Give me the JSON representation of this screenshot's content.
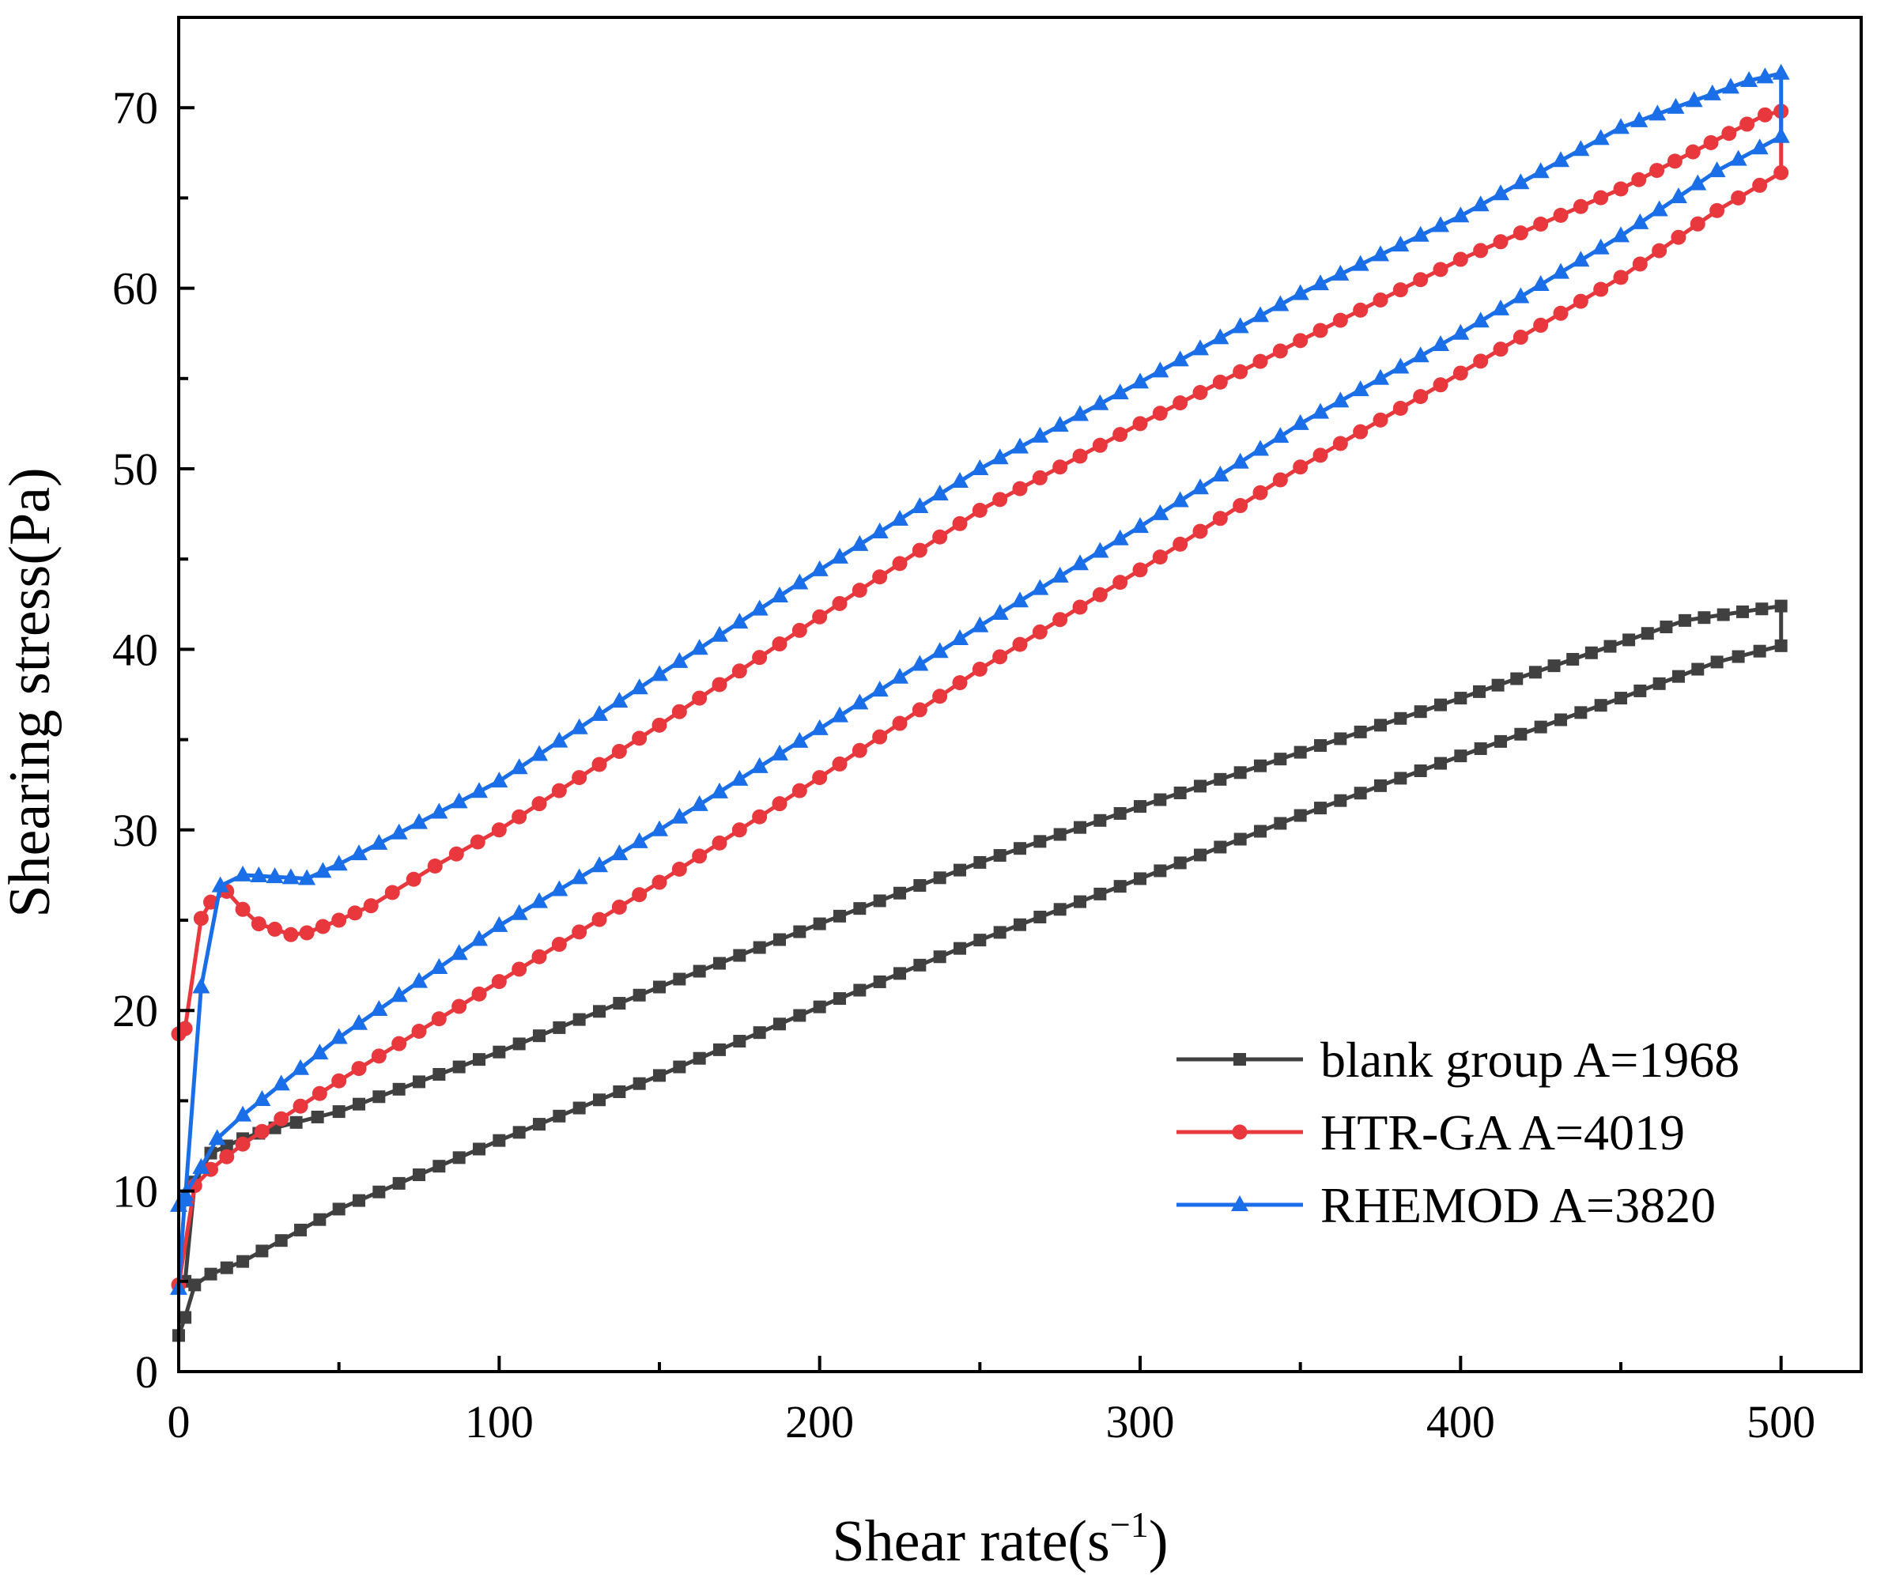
{
  "chart_data": {
    "type": "line",
    "title": "",
    "xlabel": "Shear rate(s",
    "xlabel_sup": "−1",
    "xlabel_close": ")",
    "ylabel": "Shearing stress(Pa)",
    "xlim": [
      0,
      525
    ],
    "ylim": [
      0,
      75
    ],
    "x_ticks": [
      0,
      100,
      200,
      300,
      400,
      500
    ],
    "y_ticks": [
      0,
      10,
      20,
      30,
      40,
      50,
      60,
      70
    ],
    "x_minor_step": 50,
    "y_minor_step": 5,
    "grid": false,
    "legend_position": "lower-right",
    "series": [
      {
        "name": "blank group A=1968",
        "color": "#404040",
        "marker": "square",
        "up_points": [
          [
            0,
            2
          ],
          [
            2,
            3
          ],
          [
            5,
            4.8
          ],
          [
            10,
            5.4
          ],
          [
            20,
            6.1
          ],
          [
            50,
            9
          ],
          [
            100,
            12.8
          ],
          [
            150,
            16.4
          ],
          [
            200,
            20.2
          ],
          [
            250,
            23.9
          ],
          [
            300,
            27.3
          ],
          [
            350,
            30.8
          ],
          [
            400,
            34.1
          ],
          [
            450,
            37.3
          ],
          [
            480,
            39.3
          ],
          [
            500,
            40.2
          ]
        ],
        "down_points": [
          [
            500,
            42.4
          ],
          [
            470,
            41.6
          ],
          [
            400,
            37.3
          ],
          [
            350,
            34.3
          ],
          [
            300,
            31.3
          ],
          [
            250,
            28.2
          ],
          [
            200,
            24.8
          ],
          [
            150,
            21.3
          ],
          [
            100,
            17.7
          ],
          [
            50,
            14.4
          ],
          [
            30,
            13.5
          ],
          [
            20,
            12.9
          ],
          [
            10,
            12.1
          ],
          [
            5,
            10.5
          ],
          [
            2,
            5
          ]
        ]
      },
      {
        "name": "HTR-GA A=4019",
        "color": "#e8383d",
        "marker": "circle",
        "up_points": [
          [
            0,
            4.8
          ],
          [
            5,
            10.3
          ],
          [
            10,
            11.2
          ],
          [
            20,
            12.6
          ],
          [
            50,
            16.1
          ],
          [
            100,
            21.6
          ],
          [
            150,
            27.1
          ],
          [
            200,
            32.9
          ],
          [
            250,
            38.9
          ],
          [
            300,
            44.4
          ],
          [
            350,
            50.1
          ],
          [
            400,
            55.3
          ],
          [
            450,
            60.6
          ],
          [
            480,
            64.3
          ],
          [
            500,
            66.4
          ]
        ],
        "down_points": [
          [
            500,
            69.8
          ],
          [
            495,
            69.6
          ],
          [
            450,
            65.5
          ],
          [
            400,
            61.6
          ],
          [
            350,
            57.1
          ],
          [
            300,
            52.5
          ],
          [
            250,
            47.7
          ],
          [
            200,
            41.8
          ],
          [
            150,
            35.8
          ],
          [
            100,
            30
          ],
          [
            80,
            28
          ],
          [
            60,
            25.8
          ],
          [
            50,
            25
          ],
          [
            40,
            24.3
          ],
          [
            35,
            24.2
          ],
          [
            25,
            24.8
          ],
          [
            20,
            25.6
          ],
          [
            15,
            26.6
          ],
          [
            10,
            26
          ],
          [
            7,
            25.1
          ],
          [
            2,
            19
          ],
          [
            0,
            18.7
          ]
        ]
      },
      {
        "name": "RHEMOD A=3820",
        "color": "#1a6ee8",
        "marker": "triangle",
        "up_points": [
          [
            0,
            4.6
          ],
          [
            2,
            9.8
          ],
          [
            7,
            11.3
          ],
          [
            12,
            12.9
          ],
          [
            20,
            14.2
          ],
          [
            50,
            18.5
          ],
          [
            100,
            24.7
          ],
          [
            150,
            30
          ],
          [
            200,
            35.6
          ],
          [
            250,
            41.3
          ],
          [
            300,
            46.8
          ],
          [
            350,
            52.5
          ],
          [
            400,
            57.5
          ],
          [
            450,
            62.9
          ],
          [
            480,
            66.5
          ],
          [
            500,
            68.4
          ]
        ],
        "down_points": [
          [
            500,
            71.9
          ],
          [
            490,
            71.5
          ],
          [
            450,
            68.9
          ],
          [
            400,
            64
          ],
          [
            350,
            59.7
          ],
          [
            300,
            54.8
          ],
          [
            250,
            50
          ],
          [
            200,
            44.4
          ],
          [
            150,
            38.6
          ],
          [
            100,
            32.7
          ],
          [
            50,
            28.1
          ],
          [
            40,
            27.3
          ],
          [
            30,
            27.4
          ],
          [
            20,
            27.5
          ],
          [
            13,
            26.9
          ],
          [
            7,
            21.3
          ],
          [
            2,
            9.5
          ],
          [
            0,
            9.2
          ]
        ]
      }
    ]
  }
}
